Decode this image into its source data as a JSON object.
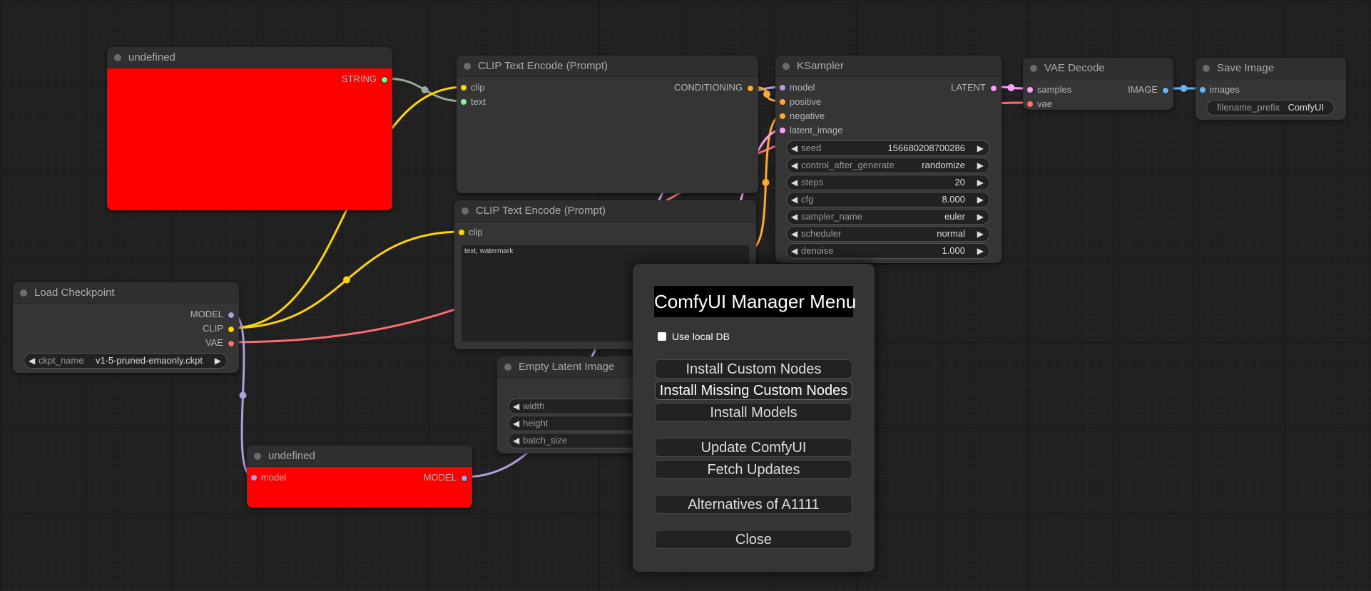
{
  "nodes": [
    {
      "id": "undefined_top",
      "title": "undefined",
      "body_color": "#ff0000",
      "inputs": [],
      "outputs": [
        {
          "label": "STRING",
          "color": "#8cf28c"
        }
      ],
      "widgets": []
    },
    {
      "id": "clip_text_1",
      "title": "CLIP Text Encode (Prompt)",
      "inputs": [
        {
          "label": "clip",
          "color": "#ffd500"
        },
        {
          "label": "text",
          "color": "#8cf28c"
        }
      ],
      "outputs": [
        {
          "label": "CONDITIONING",
          "color": "#ffa931"
        }
      ],
      "widgets": []
    },
    {
      "id": "clip_text_2",
      "title": "CLIP Text Encode (Prompt)",
      "inputs": [
        {
          "label": "clip",
          "color": "#ffd500"
        }
      ],
      "outputs": [],
      "widgets": [
        {
          "type": "textarea",
          "value": "text, watermark"
        }
      ]
    },
    {
      "id": "ksampler",
      "title": "KSampler",
      "inputs": [
        {
          "label": "model",
          "color": "#b39ddb"
        },
        {
          "label": "positive",
          "color": "#ffa931"
        },
        {
          "label": "negative",
          "color": "#ffa931"
        },
        {
          "label": "latent_image",
          "color": "#ff9cf9"
        }
      ],
      "outputs": [
        {
          "label": "LATENT",
          "color": "#ff9cf9"
        }
      ],
      "widgets": [
        {
          "label": "seed",
          "value": "156680208700286"
        },
        {
          "label": "control_after_generate",
          "value": "randomize"
        },
        {
          "label": "steps",
          "value": "20"
        },
        {
          "label": "cfg",
          "value": "8.000"
        },
        {
          "label": "sampler_name",
          "value": "euler"
        },
        {
          "label": "scheduler",
          "value": "normal"
        },
        {
          "label": "denoise",
          "value": "1.000"
        }
      ]
    },
    {
      "id": "vae_decode",
      "title": "VAE Decode",
      "inputs": [
        {
          "label": "samples",
          "color": "#ff9cf9"
        },
        {
          "label": "vae",
          "color": "#ff6e6e"
        }
      ],
      "outputs": [
        {
          "label": "IMAGE",
          "color": "#64b5f6"
        }
      ],
      "widgets": []
    },
    {
      "id": "save_image",
      "title": "Save Image",
      "inputs": [
        {
          "label": "images",
          "color": "#64b5f6"
        }
      ],
      "outputs": [],
      "widgets": [
        {
          "label": "filename_prefix",
          "value": "ComfyUI",
          "noarrow": true
        }
      ]
    },
    {
      "id": "load_checkpoint",
      "title": "Load Checkpoint",
      "inputs": [],
      "outputs": [
        {
          "label": "MODEL",
          "color": "#b39ddb"
        },
        {
          "label": "CLIP",
          "color": "#ffd500"
        },
        {
          "label": "VAE",
          "color": "#ff6e6e"
        }
      ],
      "widgets": [
        {
          "label": "ckpt_name",
          "value": "v1-5-pruned-emaonly.ckpt"
        }
      ]
    },
    {
      "id": "empty_latent",
      "title": "Empty Latent Image",
      "inputs": [],
      "outputs": [],
      "spacer_rows": 1,
      "widgets": [
        {
          "label": "width",
          "value": ""
        },
        {
          "label": "height",
          "value": ""
        },
        {
          "label": "batch_size",
          "value": ""
        }
      ]
    },
    {
      "id": "undefined_bottom",
      "title": "undefined",
      "body_color": "#ff0000",
      "inputs": [
        {
          "label": "model",
          "color": "#b39ddb"
        }
      ],
      "outputs": [
        {
          "label": "MODEL",
          "color": "#b39ddb"
        }
      ],
      "widgets": []
    }
  ],
  "dialog": {
    "title": "ComfyUI Manager Menu",
    "checkbox_label": "Use local DB",
    "checkbox_checked": false,
    "buttons": [
      "Install Custom Nodes",
      "Install Missing Custom Nodes",
      "Install Models",
      "Update ComfyUI",
      "Fetch Updates",
      "Alternatives of A1111",
      "Close"
    ]
  }
}
